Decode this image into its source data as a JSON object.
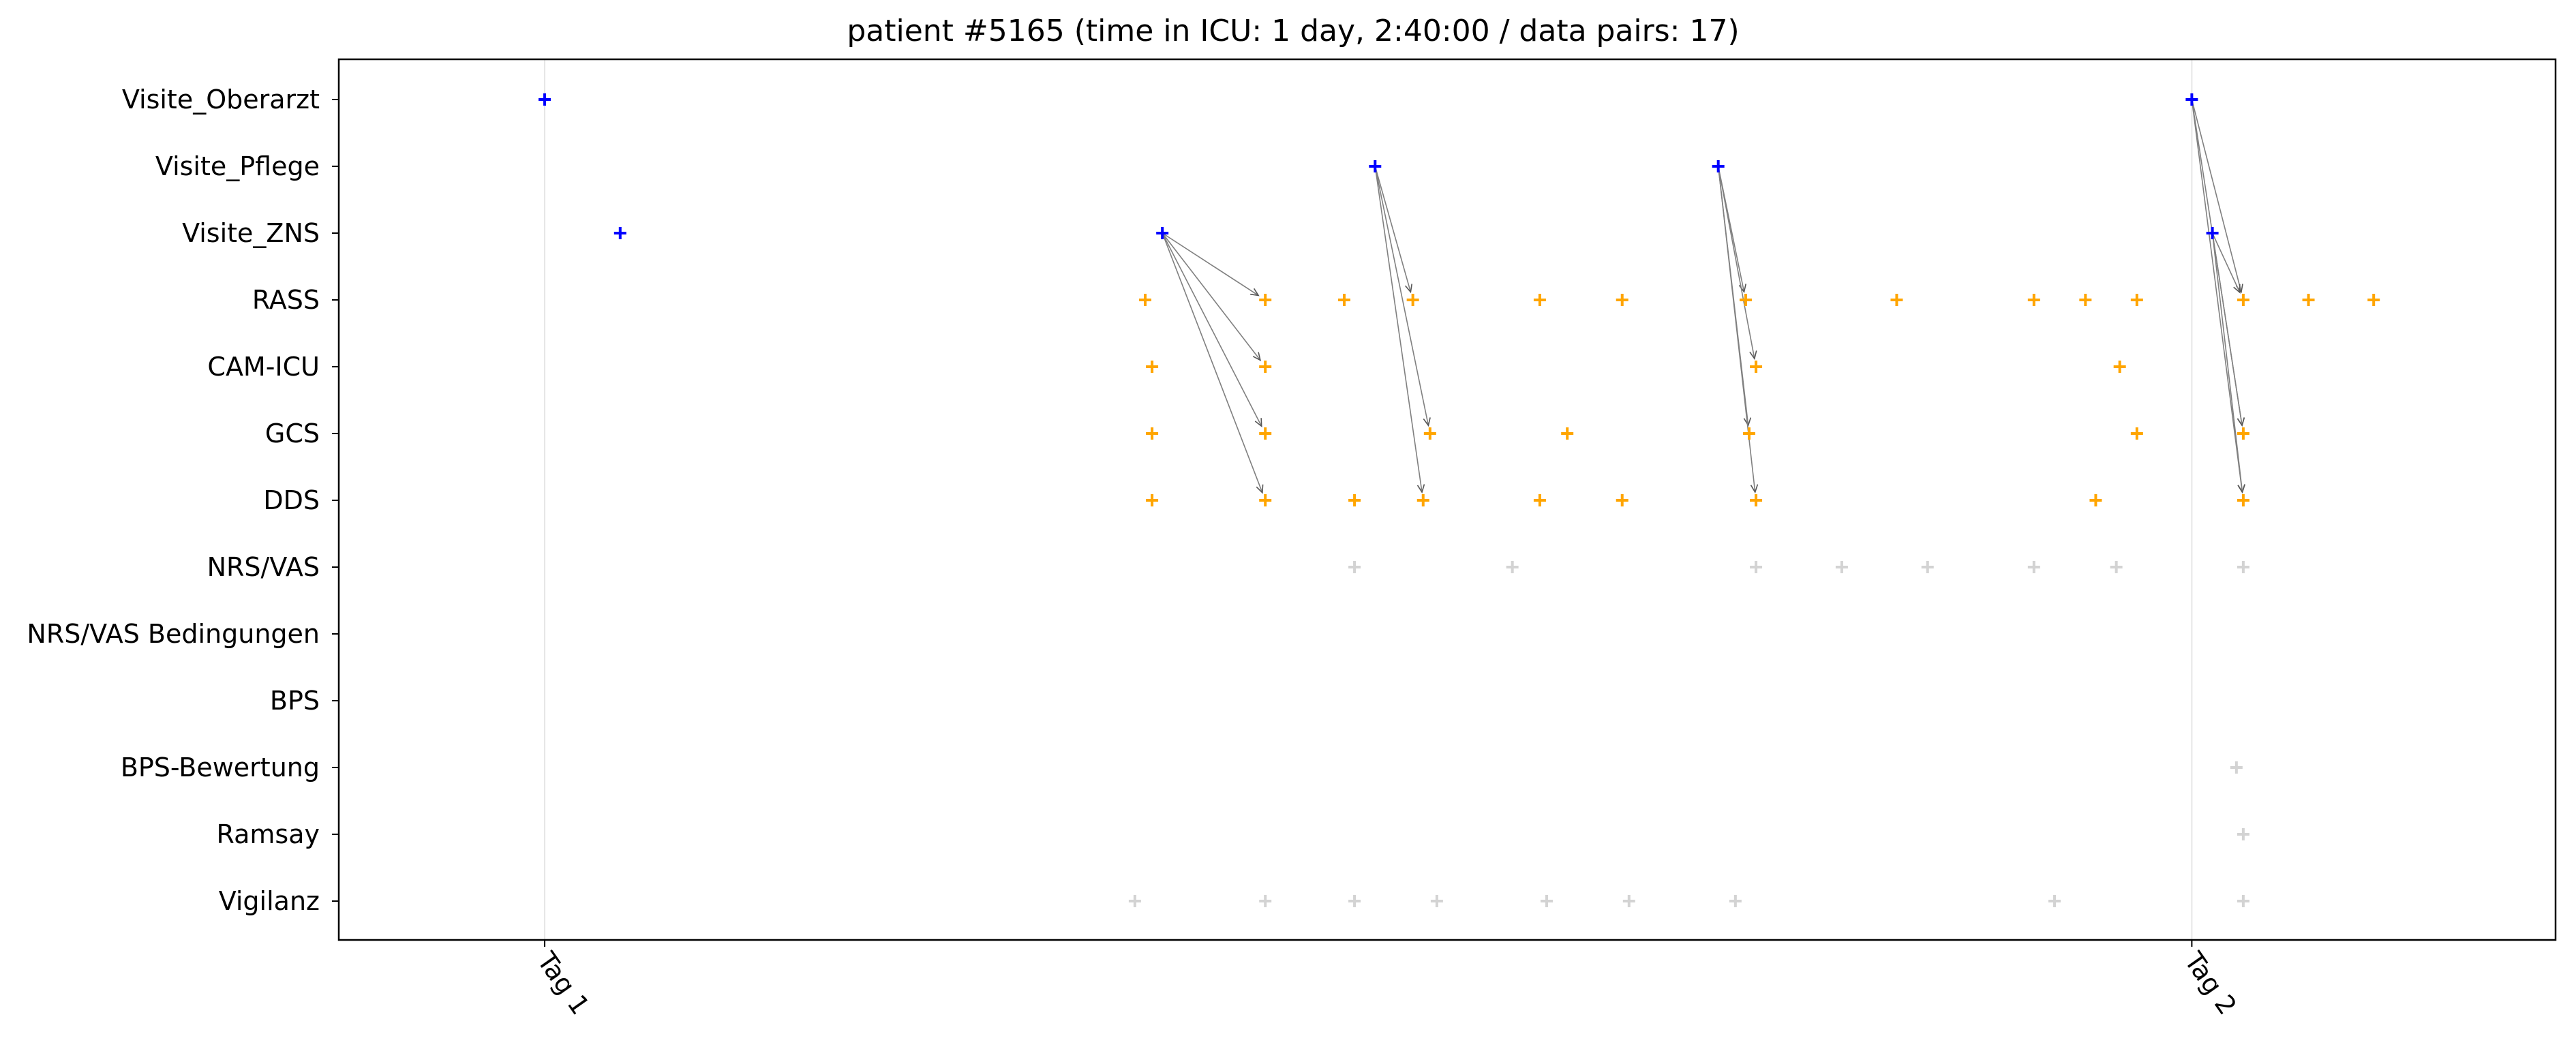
{
  "chart_data": {
    "type": "scatter",
    "title": "patient #5165 (time in ICU: 1 day, 2:40:00 / data pairs: 17)",
    "categories": [
      "Visite_Oberarzt",
      "Visite_Pflege",
      "Visite_ZNS",
      "RASS",
      "CAM-ICU",
      "GCS",
      "DDS",
      "NRS/VAS",
      "NRS/VAS Bedingungen",
      "BPS",
      "BPS-Bewertung",
      "Ramsay",
      "Vigilanz"
    ],
    "x_unit": "hours since first Tag tick",
    "xlim": [
      -3.0,
      29.3
    ],
    "x_ticks": [
      {
        "value": 0,
        "label": "Tag 1"
      },
      {
        "value": 24,
        "label": "Tag 2"
      }
    ],
    "vertical_lines": [
      0,
      24
    ],
    "colors": {
      "visit": "#0000ff",
      "paired": "#ffa500",
      "unpaired": "#d3d3d3",
      "arrow": "#808080"
    },
    "series": [
      {
        "role": "visit",
        "points": [
          {
            "x": 0.0,
            "cat": "Visite_Oberarzt"
          },
          {
            "x": 24.0,
            "cat": "Visite_Oberarzt"
          },
          {
            "x": 12.1,
            "cat": "Visite_Pflege"
          },
          {
            "x": 17.1,
            "cat": "Visite_Pflege"
          },
          {
            "x": 1.1,
            "cat": "Visite_ZNS"
          },
          {
            "x": 9.0,
            "cat": "Visite_ZNS"
          },
          {
            "x": 24.3,
            "cat": "Visite_ZNS"
          }
        ]
      },
      {
        "role": "paired",
        "points": [
          {
            "x": 8.75,
            "cat": "RASS"
          },
          {
            "x": 10.5,
            "cat": "RASS"
          },
          {
            "x": 11.65,
            "cat": "RASS"
          },
          {
            "x": 12.65,
            "cat": "RASS"
          },
          {
            "x": 14.5,
            "cat": "RASS"
          },
          {
            "x": 15.7,
            "cat": "RASS"
          },
          {
            "x": 17.5,
            "cat": "RASS"
          },
          {
            "x": 19.7,
            "cat": "RASS"
          },
          {
            "x": 21.7,
            "cat": "RASS"
          },
          {
            "x": 22.45,
            "cat": "RASS"
          },
          {
            "x": 23.2,
            "cat": "RASS"
          },
          {
            "x": 24.75,
            "cat": "RASS"
          },
          {
            "x": 25.7,
            "cat": "RASS"
          },
          {
            "x": 26.65,
            "cat": "RASS"
          },
          {
            "x": 8.85,
            "cat": "CAM-ICU"
          },
          {
            "x": 10.5,
            "cat": "CAM-ICU"
          },
          {
            "x": 17.65,
            "cat": "CAM-ICU"
          },
          {
            "x": 22.95,
            "cat": "CAM-ICU"
          },
          {
            "x": 8.85,
            "cat": "GCS"
          },
          {
            "x": 10.5,
            "cat": "GCS"
          },
          {
            "x": 12.9,
            "cat": "GCS"
          },
          {
            "x": 14.9,
            "cat": "GCS"
          },
          {
            "x": 17.55,
            "cat": "GCS"
          },
          {
            "x": 23.2,
            "cat": "GCS"
          },
          {
            "x": 24.75,
            "cat": "GCS"
          },
          {
            "x": 8.85,
            "cat": "DDS"
          },
          {
            "x": 10.5,
            "cat": "DDS"
          },
          {
            "x": 11.8,
            "cat": "DDS"
          },
          {
            "x": 12.8,
            "cat": "DDS"
          },
          {
            "x": 14.5,
            "cat": "DDS"
          },
          {
            "x": 15.7,
            "cat": "DDS"
          },
          {
            "x": 17.65,
            "cat": "DDS"
          },
          {
            "x": 22.6,
            "cat": "DDS"
          },
          {
            "x": 24.75,
            "cat": "DDS"
          }
        ]
      },
      {
        "role": "unpaired",
        "points": [
          {
            "x": 11.8,
            "cat": "NRS/VAS"
          },
          {
            "x": 14.1,
            "cat": "NRS/VAS"
          },
          {
            "x": 17.65,
            "cat": "NRS/VAS"
          },
          {
            "x": 18.9,
            "cat": "NRS/VAS"
          },
          {
            "x": 20.15,
            "cat": "NRS/VAS"
          },
          {
            "x": 21.7,
            "cat": "NRS/VAS"
          },
          {
            "x": 22.9,
            "cat": "NRS/VAS"
          },
          {
            "x": 24.75,
            "cat": "NRS/VAS"
          },
          {
            "x": 24.65,
            "cat": "BPS-Bewertung"
          },
          {
            "x": 24.75,
            "cat": "Ramsay"
          },
          {
            "x": 8.6,
            "cat": "Vigilanz"
          },
          {
            "x": 10.5,
            "cat": "Vigilanz"
          },
          {
            "x": 11.8,
            "cat": "Vigilanz"
          },
          {
            "x": 13.0,
            "cat": "Vigilanz"
          },
          {
            "x": 14.6,
            "cat": "Vigilanz"
          },
          {
            "x": 15.8,
            "cat": "Vigilanz"
          },
          {
            "x": 17.35,
            "cat": "Vigilanz"
          },
          {
            "x": 22.0,
            "cat": "Vigilanz"
          },
          {
            "x": 24.75,
            "cat": "Vigilanz"
          }
        ]
      }
    ],
    "arrows": [
      {
        "from": {
          "x": 9.0,
          "cat": "Visite_ZNS"
        },
        "to": {
          "x": 10.5,
          "cat": "RASS"
        }
      },
      {
        "from": {
          "x": 9.0,
          "cat": "Visite_ZNS"
        },
        "to": {
          "x": 10.5,
          "cat": "CAM-ICU"
        }
      },
      {
        "from": {
          "x": 9.0,
          "cat": "Visite_ZNS"
        },
        "to": {
          "x": 10.5,
          "cat": "GCS"
        }
      },
      {
        "from": {
          "x": 9.0,
          "cat": "Visite_ZNS"
        },
        "to": {
          "x": 10.5,
          "cat": "DDS"
        }
      },
      {
        "from": {
          "x": 12.1,
          "cat": "Visite_Pflege"
        },
        "to": {
          "x": 12.65,
          "cat": "RASS"
        }
      },
      {
        "from": {
          "x": 12.1,
          "cat": "Visite_Pflege"
        },
        "to": {
          "x": 12.9,
          "cat": "GCS"
        }
      },
      {
        "from": {
          "x": 12.1,
          "cat": "Visite_Pflege"
        },
        "to": {
          "x": 12.8,
          "cat": "DDS"
        }
      },
      {
        "from": {
          "x": 17.1,
          "cat": "Visite_Pflege"
        },
        "to": {
          "x": 17.5,
          "cat": "RASS"
        }
      },
      {
        "from": {
          "x": 17.1,
          "cat": "Visite_Pflege"
        },
        "to": {
          "x": 17.65,
          "cat": "CAM-ICU"
        }
      },
      {
        "from": {
          "x": 17.1,
          "cat": "Visite_Pflege"
        },
        "to": {
          "x": 17.55,
          "cat": "GCS"
        }
      },
      {
        "from": {
          "x": 17.1,
          "cat": "Visite_Pflege"
        },
        "to": {
          "x": 17.65,
          "cat": "DDS"
        }
      },
      {
        "from": {
          "x": 24.0,
          "cat": "Visite_Oberarzt"
        },
        "to": {
          "x": 24.75,
          "cat": "RASS"
        }
      },
      {
        "from": {
          "x": 24.0,
          "cat": "Visite_Oberarzt"
        },
        "to": {
          "x": 24.75,
          "cat": "GCS"
        }
      },
      {
        "from": {
          "x": 24.0,
          "cat": "Visite_Oberarzt"
        },
        "to": {
          "x": 24.75,
          "cat": "DDS"
        }
      },
      {
        "from": {
          "x": 24.3,
          "cat": "Visite_ZNS"
        },
        "to": {
          "x": 24.75,
          "cat": "RASS"
        }
      },
      {
        "from": {
          "x": 24.3,
          "cat": "Visite_ZNS"
        },
        "to": {
          "x": 24.75,
          "cat": "GCS"
        }
      },
      {
        "from": {
          "x": 24.3,
          "cat": "Visite_ZNS"
        },
        "to": {
          "x": 24.75,
          "cat": "DDS"
        }
      }
    ]
  }
}
